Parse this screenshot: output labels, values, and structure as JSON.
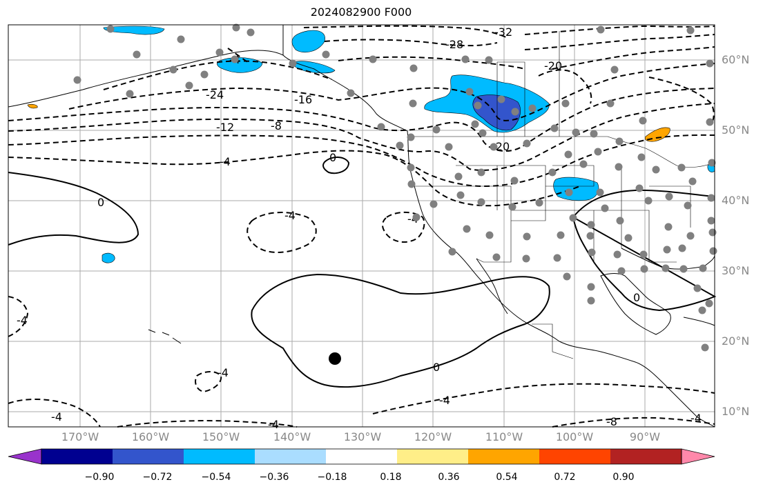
{
  "title": "2024082900 F000",
  "lat_labels": [
    "60°N",
    "50°N",
    "40°N",
    "30°N",
    "20°N",
    "10°N"
  ],
  "lon_labels": [
    "170°W",
    "160°W",
    "150°W",
    "140°W",
    "130°W",
    "120°W",
    "110°W",
    "100°W",
    "90°W"
  ],
  "contour_labels": [
    "-32",
    "-28",
    "-20",
    "-24",
    "-16",
    "-12",
    "-8",
    "-4",
    "0",
    "0",
    "-4",
    "-4",
    "-4",
    "-4",
    "-8",
    "-4",
    "-4",
    "-4",
    "0",
    "-20",
    "-4",
    "0",
    "-4"
  ],
  "colorbar": {
    "colors": [
      "#9933cc",
      "#000090",
      "#3355cc",
      "#00bbff",
      "#aaddff",
      "#ffffff",
      "#ffee88",
      "#ffa500",
      "#ff4400",
      "#b22222",
      "#ff88aa"
    ],
    "tick_labels": [
      "−0.90",
      "−0.72",
      "−0.54",
      "−0.36",
      "−0.18",
      "0.18",
      "0.36",
      "0.54",
      "0.72",
      "0.90"
    ]
  },
  "colors": {
    "contour": "#000000",
    "grid": "#aaaaaa",
    "station": "#808080",
    "marker": "#000000",
    "axis_label": "#888888"
  }
}
